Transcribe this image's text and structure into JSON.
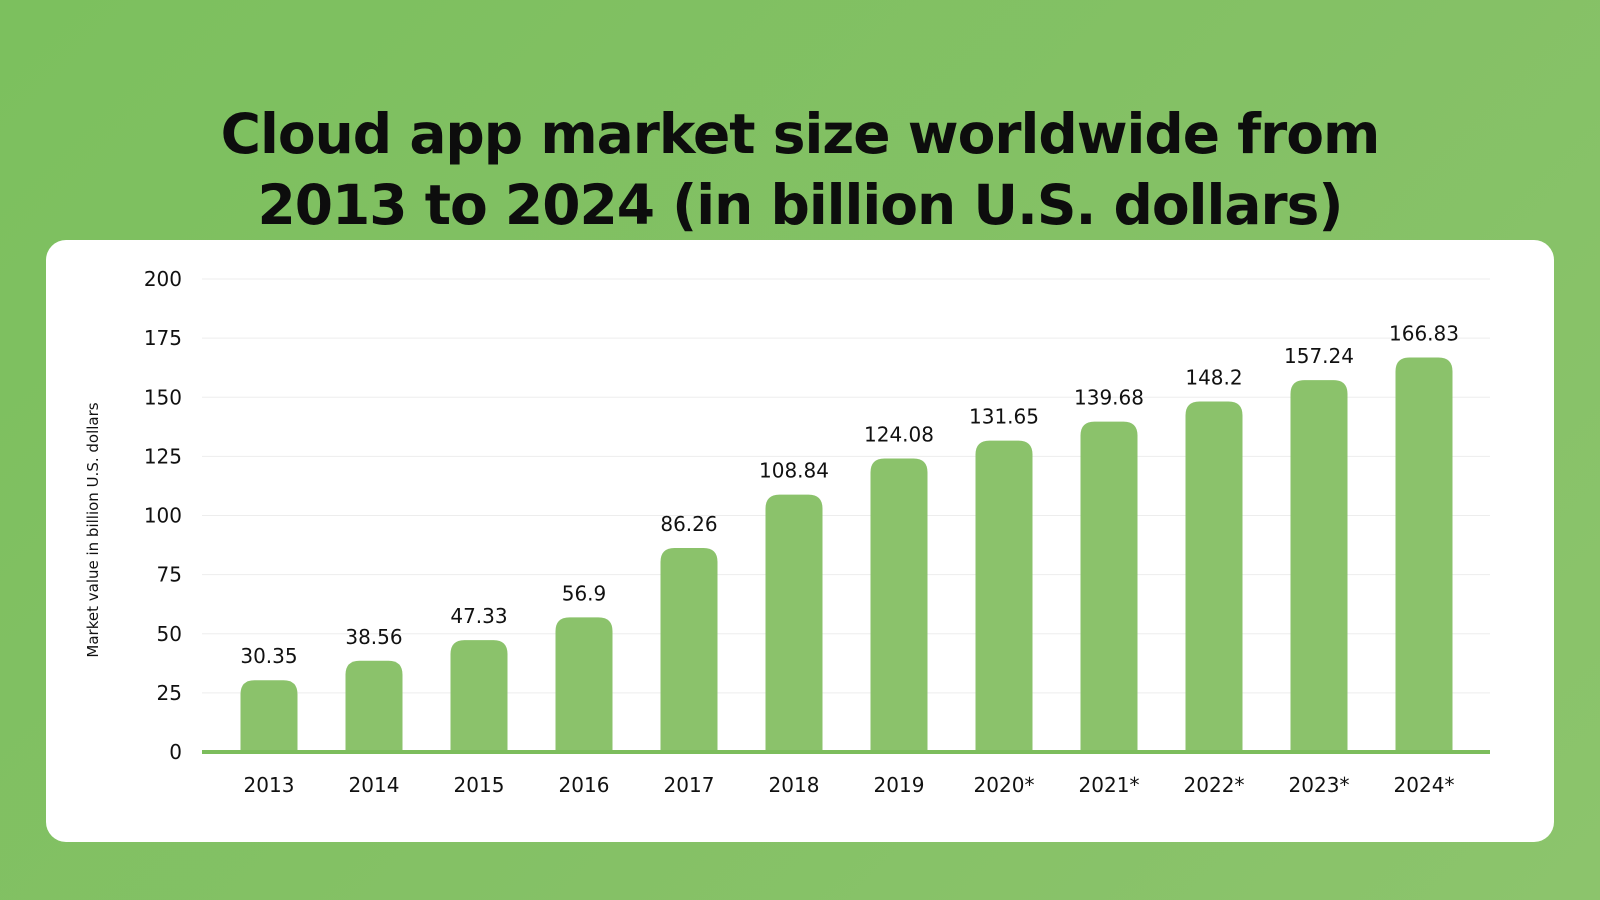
{
  "chart_data": {
    "type": "bar",
    "title_lines": [
      "Cloud app market size worldwide from",
      "2013 to 2024 (in billion U.S. dollars)"
    ],
    "categories": [
      "2013",
      "2014",
      "2015",
      "2016",
      "2017",
      "2018",
      "2019",
      "2020*",
      "2021*",
      "2022*",
      "2023*",
      "2024*"
    ],
    "values": [
      30.35,
      38.56,
      47.33,
      56.9,
      86.26,
      108.84,
      124.08,
      131.65,
      139.68,
      148.2,
      157.24,
      166.83
    ],
    "value_labels": [
      "30.35",
      "38.56",
      "47.33",
      "56.9",
      "86.26",
      "108.84",
      "124.08",
      "131.65",
      "139.68",
      "148.2",
      "157.24",
      "166.83"
    ],
    "xlabel": "",
    "ylabel": "Market value in billion U.S. dollars",
    "ylim": [
      0,
      200
    ],
    "yticks": [
      0,
      25,
      50,
      75,
      100,
      125,
      150,
      175,
      200
    ],
    "grid": true,
    "legend": "none",
    "colors": {
      "bar": "#8bc26b",
      "baseline": "#7cbd5c",
      "background": "#7cc05e",
      "card": "#ffffff",
      "text": "#111111"
    }
  }
}
